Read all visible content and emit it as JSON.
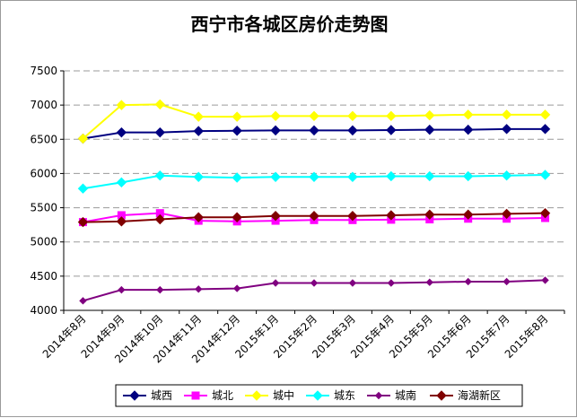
{
  "chart_data": {
    "type": "line",
    "title": "西宁市各城区房价走势图",
    "xlabel": "",
    "ylabel": "",
    "categories": [
      "2014年8月",
      "2014年9月",
      "2014年10月",
      "2014年11月",
      "2014年12月",
      "2015年1月",
      "2015年2月",
      "2015年3月",
      "2015年4月",
      "2015年5月",
      "2015年6月",
      "2015年7月",
      "2015年8月"
    ],
    "ylim": [
      4000,
      7500
    ],
    "yticks": [
      4000,
      4500,
      5000,
      5500,
      6000,
      6500,
      7000,
      7500
    ],
    "grid": true,
    "legend_position": "bottom",
    "series": [
      {
        "name": "城西",
        "color": "#000080",
        "marker": "diamond",
        "values": [
          6510,
          6600,
          6600,
          6620,
          6625,
          6630,
          6630,
          6630,
          6635,
          6640,
          6640,
          6650,
          6650
        ]
      },
      {
        "name": "城北",
        "color": "#ff00ff",
        "marker": "square",
        "values": [
          5290,
          5390,
          5420,
          5310,
          5300,
          5310,
          5320,
          5320,
          5325,
          5330,
          5340,
          5340,
          5350
        ]
      },
      {
        "name": "城中",
        "color": "#ffff00",
        "marker": "diamond",
        "values": [
          6510,
          7000,
          7010,
          6830,
          6830,
          6840,
          6840,
          6840,
          6840,
          6850,
          6860,
          6860,
          6860
        ]
      },
      {
        "name": "城东",
        "color": "#00ffff",
        "marker": "diamond",
        "values": [
          5780,
          5870,
          5970,
          5950,
          5940,
          5950,
          5950,
          5950,
          5960,
          5960,
          5960,
          5970,
          5980
        ]
      },
      {
        "name": "城南",
        "color": "#800080",
        "marker": "diamond-small",
        "values": [
          4140,
          4300,
          4300,
          4310,
          4320,
          4400,
          4400,
          4400,
          4400,
          4410,
          4420,
          4420,
          4440
        ]
      },
      {
        "name": "海湖新区",
        "color": "#800000",
        "marker": "diamond",
        "values": [
          5290,
          5300,
          5330,
          5360,
          5360,
          5380,
          5380,
          5380,
          5390,
          5400,
          5400,
          5410,
          5420
        ]
      }
    ]
  }
}
